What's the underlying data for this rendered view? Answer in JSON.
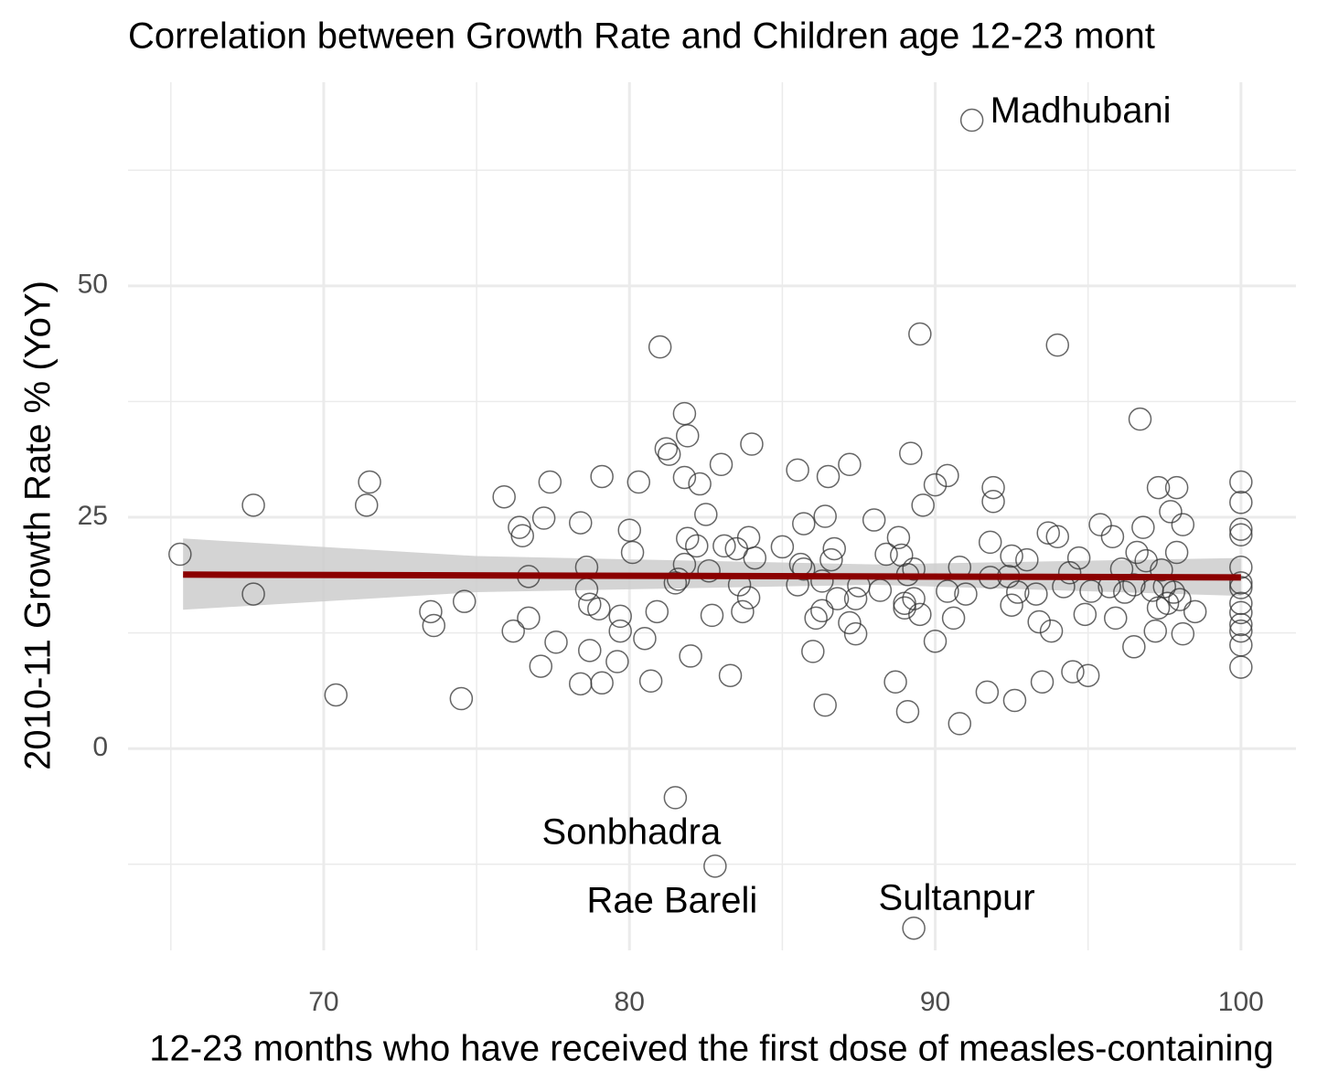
{
  "chart_data": {
    "type": "scatter",
    "title": "Correlation between Growth Rate and Children age 12-23 mont",
    "x_label": "12-23 months who have received the first dose of measles-containing",
    "y_label": "2010-11 Growth Rate % (YoY)",
    "xlim": [
      63.6,
      101.8
    ],
    "ylim": [
      -21.8,
      72
    ],
    "xticks": [
      70,
      80,
      90,
      100
    ],
    "yticks": [
      0,
      25,
      50
    ],
    "minor_xticks": [
      65,
      75,
      85,
      95
    ],
    "minor_yticks": [
      -12.5,
      12.5,
      37.5,
      62.5
    ],
    "grid": true,
    "color": "#333333",
    "trend_color": "#8b0000",
    "band_color": "#cccccc",
    "x": [
      65.3,
      67.7,
      67.7,
      70.4,
      71.4,
      71.5,
      73.5,
      73.6,
      74.5,
      74.6,
      75.9,
      76.2,
      76.4,
      76.5,
      76.7,
      76.7,
      77.1,
      77.2,
      77.4,
      77.6,
      78.4,
      78.4,
      78.6,
      78.6,
      78.7,
      78.7,
      79.0,
      79.1,
      79.1,
      79.6,
      79.7,
      79.7,
      80.0,
      80.1,
      80.3,
      80.5,
      80.7,
      80.9,
      81.0,
      81.2,
      81.3,
      81.5,
      81.6,
      81.8,
      81.8,
      81.8,
      81.9,
      81.9,
      82.0,
      82.2,
      82.3,
      82.5,
      82.6,
      82.7,
      83.0,
      83.1,
      83.3,
      83.5,
      83.6,
      83.7,
      83.9,
      83.9,
      84.0,
      84.1,
      85.0,
      85.5,
      85.5,
      85.6,
      85.7,
      85.7,
      86.0,
      86.1,
      86.3,
      86.3,
      86.4,
      86.4,
      86.5,
      86.6,
      86.7,
      86.8,
      87.2,
      87.2,
      87.4,
      87.4,
      87.5,
      88.0,
      88.2,
      88.4,
      88.7,
      88.8,
      88.9,
      89.0,
      89.0,
      89.1,
      89.1,
      89.2,
      89.3,
      89.3,
      89.5,
      89.5,
      89.6,
      90.0,
      90.0,
      90.4,
      90.4,
      90.6,
      90.8,
      90.8,
      91.0,
      91.7,
      91.8,
      91.8,
      91.9,
      91.9,
      92.4,
      92.5,
      92.5,
      92.6,
      92.7,
      93.0,
      93.3,
      93.4,
      93.5,
      93.7,
      93.8,
      94.0,
      94.0,
      94.2,
      94.4,
      94.5,
      94.7,
      94.9,
      95.0,
      95.1,
      95.4,
      95.7,
      95.8,
      95.9,
      96.1,
      96.2,
      96.5,
      96.5,
      96.6,
      96.7,
      96.8,
      96.9,
      97.1,
      97.2,
      97.3,
      97.3,
      97.4,
      97.5,
      97.6,
      97.7,
      97.8,
      97.9,
      97.9,
      98.0,
      98.1,
      98.1,
      98.5,
      100,
      100,
      100,
      100,
      100,
      100,
      100,
      100,
      100,
      100,
      100,
      100,
      100,
      91.2,
      81.5,
      82.8,
      89.3
    ],
    "y": [
      21.0,
      26.3,
      16.7,
      5.8,
      26.3,
      28.8,
      14.8,
      13.3,
      5.4,
      15.9,
      27.2,
      12.7,
      23.9,
      23.0,
      18.6,
      14.1,
      8.9,
      24.9,
      28.8,
      11.5,
      24.4,
      7.0,
      19.6,
      17.2,
      15.6,
      10.6,
      15.1,
      29.4,
      7.1,
      9.4,
      14.3,
      12.7,
      23.6,
      21.2,
      28.8,
      11.9,
      7.3,
      14.8,
      43.4,
      32.4,
      31.8,
      17.9,
      18.3,
      36.2,
      29.3,
      19.9,
      22.7,
      33.8,
      10.0,
      21.9,
      28.6,
      25.3,
      19.2,
      14.4,
      30.7,
      21.9,
      7.9,
      21.6,
      17.7,
      14.8,
      22.8,
      16.3,
      32.9,
      20.6,
      21.8,
      30.1,
      17.7,
      19.9,
      24.3,
      19.4,
      10.5,
      14.1,
      18.1,
      14.9,
      4.7,
      25.1,
      29.4,
      20.4,
      21.6,
      16.2,
      30.7,
      13.6,
      12.4,
      16.2,
      17.6,
      24.7,
      17.1,
      21.0,
      7.2,
      22.8,
      20.9,
      15.7,
      15.2,
      18.8,
      4.0,
      31.9,
      19.4,
      16.2,
      44.8,
      14.5,
      26.3,
      11.6,
      28.5,
      29.5,
      17.0,
      14.1,
      2.7,
      19.6,
      16.7,
      6.1,
      22.3,
      18.5,
      28.2,
      26.7,
      18.6,
      20.8,
      15.5,
      5.2,
      16.9,
      20.4,
      16.7,
      13.7,
      7.2,
      23.3,
      12.7,
      43.6,
      22.9,
      17.5,
      19.0,
      8.3,
      20.6,
      14.5,
      7.9,
      17.0,
      24.2,
      17.5,
      22.9,
      14.1,
      19.4,
      16.9,
      11.0,
      17.7,
      21.2,
      35.6,
      23.9,
      20.3,
      17.1,
      12.7,
      28.2,
      15.2,
      19.3,
      17.5,
      15.7,
      25.6,
      16.9,
      28.2,
      21.2,
      16.1,
      12.4,
      24.2,
      14.8,
      28.8,
      26.6,
      23.7,
      23.1,
      19.6,
      17.9,
      17.4,
      15.7,
      14.7,
      13.4,
      12.7,
      11.2,
      8.8,
      67.9,
      -5.3,
      -12.7,
      -19.4
    ],
    "trend": {
      "x": [
        65.4,
        100
      ],
      "y": [
        18.8,
        18.5
      ]
    },
    "band": {
      "x": [
        65.4,
        75,
        88,
        100
      ],
      "lower": [
        15.0,
        16.9,
        17.7,
        16.5
      ],
      "upper": [
        22.7,
        20.8,
        19.9,
        20.6
      ]
    },
    "annotations": [
      {
        "text": "Madhubani",
        "x": 91.2,
        "y": 67.9
      },
      {
        "text": "Sonbhadra",
        "x": 81.5,
        "y": -5.3
      },
      {
        "text": "Rae Bareli",
        "x": 82.8,
        "y": -12.7
      },
      {
        "text": "Sultanpur",
        "x": 89.3,
        "y": -19.4
      }
    ]
  }
}
